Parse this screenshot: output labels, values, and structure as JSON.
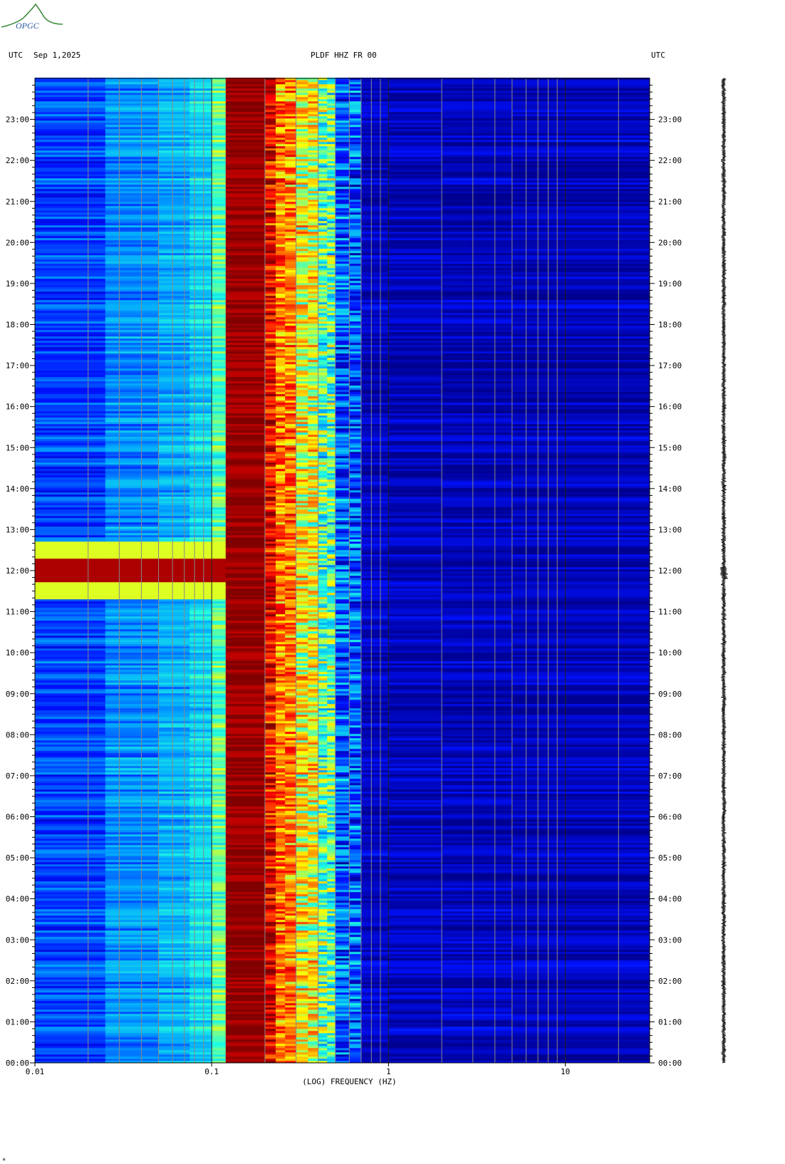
{
  "logo": {
    "text": "OPGC",
    "icon": "observatory-logo-icon"
  },
  "header": {
    "left_tz": "UTC",
    "date": "Sep 1,2025",
    "station": "PLDF HHZ FR 00",
    "right_tz": "UTC"
  },
  "footer_mark": "*",
  "colors": {
    "colormap": [
      "#00008f",
      "#0010ff",
      "#00a0ff",
      "#20ffe0",
      "#ffff00",
      "#ff8000",
      "#ff0000",
      "#800000"
    ]
  },
  "chart_data": {
    "type": "heatmap",
    "title": "PLDF HHZ FR 00",
    "xlabel": "(LOG) FREQUENCY (HZ)",
    "ylabel": "",
    "x_scale": "log",
    "x_range_hz": [
      0.01,
      30
    ],
    "x_tick_labels": [
      "0.01",
      "0.1",
      "1",
      "10"
    ],
    "x_tick_values": [
      0.01,
      0.1,
      1,
      10
    ],
    "y_range": [
      "00:00",
      "24:00"
    ],
    "y_tick_labels": [
      "00:00",
      "01:00",
      "02:00",
      "03:00",
      "04:00",
      "05:00",
      "06:00",
      "07:00",
      "08:00",
      "09:00",
      "10:00",
      "11:00",
      "12:00",
      "13:00",
      "14:00",
      "15:00",
      "16:00",
      "17:00",
      "18:00",
      "19:00",
      "20:00",
      "21:00",
      "22:00",
      "23:00"
    ],
    "grid": true,
    "colorbar": false,
    "features": [
      {
        "freq_range_hz": [
          0.12,
          0.2
        ],
        "time_range_h": [
          0,
          24
        ],
        "level": "max"
      },
      {
        "freq_range_hz": [
          0.2,
          0.3
        ],
        "time_range_h": [
          0,
          24
        ],
        "level": "high"
      },
      {
        "freq_range_hz": [
          0.3,
          0.5
        ],
        "time_range_h": [
          0,
          24
        ],
        "level": "medium"
      },
      {
        "freq_range_hz": [
          0.01,
          0.12
        ],
        "time_range_h": [
          11.7,
          12.3
        ],
        "level": "max"
      }
    ],
    "side_trace": {
      "type": "seismogram",
      "time_range_h": [
        0,
        24
      ]
    }
  }
}
